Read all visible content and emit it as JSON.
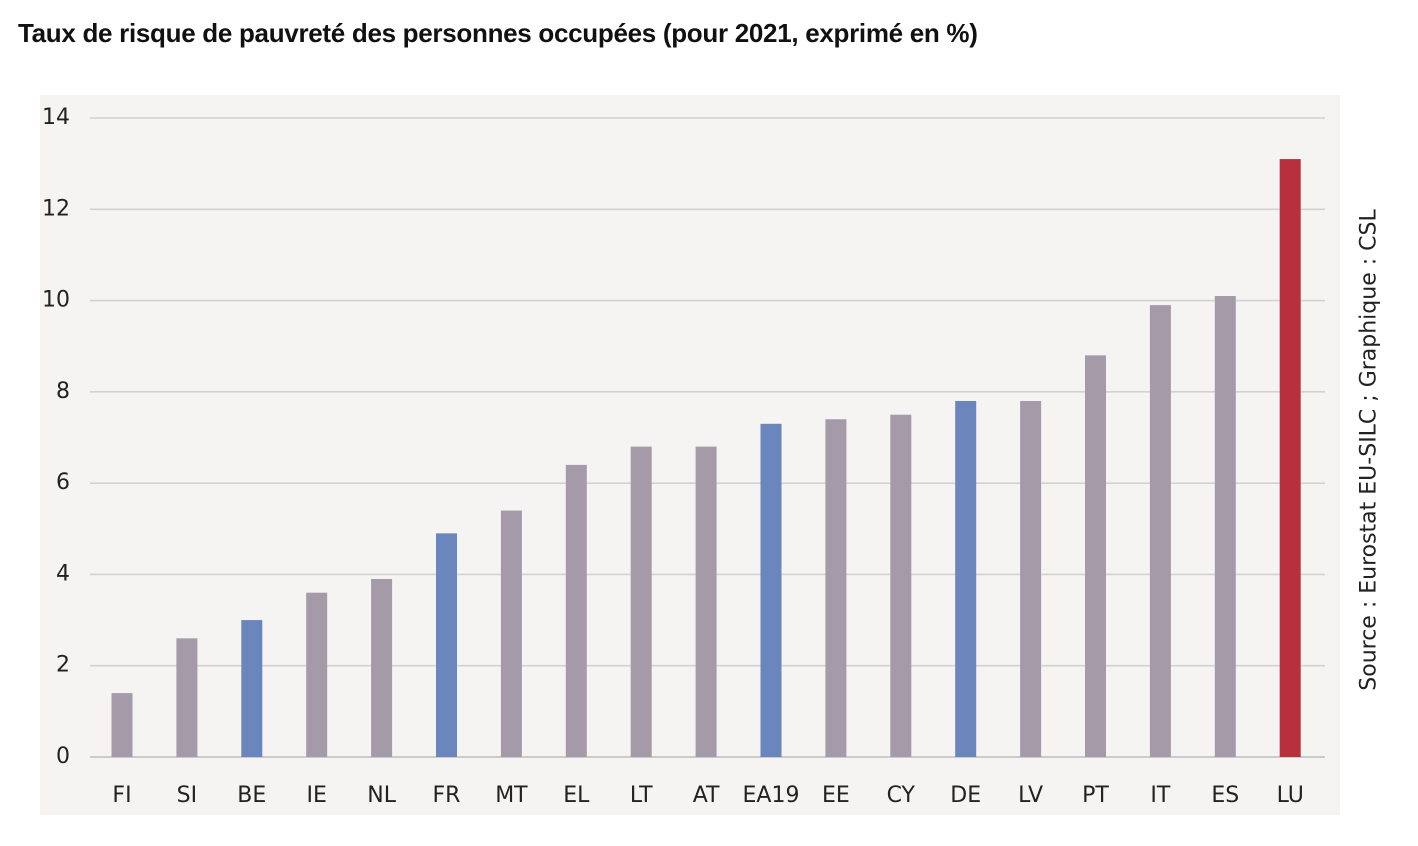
{
  "chart_data": {
    "type": "bar",
    "title": "Taux de risque de pauvreté des personnes occupées (pour 2021, exprimé en %)",
    "xlabel": "",
    "ylabel": "",
    "ylim": [
      0,
      14
    ],
    "yticks": [
      "0",
      "2",
      "4",
      "6",
      "8",
      "10",
      "12",
      "14"
    ],
    "grid": true,
    "categories": [
      "FI",
      "SI",
      "BE",
      "IE",
      "NL",
      "FR",
      "MT",
      "EL",
      "LT",
      "AT",
      "EA19",
      "EE",
      "CY",
      "DE",
      "LV",
      "PT",
      "IT",
      "ES",
      "LU"
    ],
    "values": [
      1.4,
      2.6,
      3.0,
      3.6,
      3.9,
      4.9,
      5.4,
      6.4,
      6.8,
      6.8,
      7.3,
      7.4,
      7.5,
      7.8,
      7.8,
      8.8,
      9.9,
      10.1,
      13.1
    ],
    "bar_colors": [
      "#a59ba8",
      "#a59ba8",
      "#6b86bc",
      "#a59ba8",
      "#a59ba8",
      "#6b86bc",
      "#a59ba8",
      "#a59ba8",
      "#a59ba8",
      "#a59ba8",
      "#6b86bc",
      "#a59ba8",
      "#a59ba8",
      "#6b86bc",
      "#a59ba8",
      "#a59ba8",
      "#a59ba8",
      "#a59ba8",
      "#b7303b"
    ],
    "source": "Source : Eurostat EU-SILC ; Graphique : CSL"
  },
  "colors": {
    "plot_background": "#f5f4f2",
    "gridline": "#d2d2d2",
    "baseline": "#bdbdbd"
  }
}
